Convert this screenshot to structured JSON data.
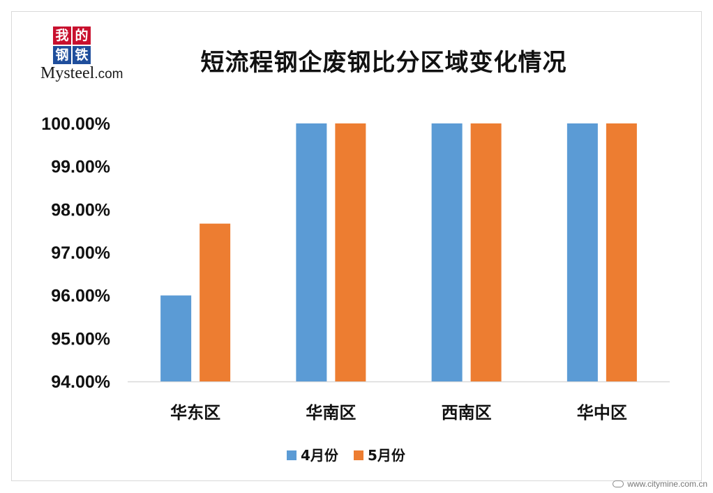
{
  "logo": {
    "chars": [
      "我",
      "的",
      "钢",
      "铁"
    ],
    "text_main": "Mysteel",
    "text_suffix": ".com",
    "colors": {
      "red": "#c8102e",
      "blue": "#1f4e9c"
    }
  },
  "watermark": {
    "url": "www.citymine.com.cn"
  },
  "chart_data": {
    "type": "bar",
    "title": "短流程钢企废钢比分区域变化情况",
    "categories": [
      "华东区",
      "华南区",
      "西南区",
      "华中区"
    ],
    "series": [
      {
        "name": "4月份",
        "color": "#5b9bd5",
        "values": [
          96.0,
          100.0,
          100.0,
          100.0
        ]
      },
      {
        "name": "5月份",
        "color": "#ed7d31",
        "values": [
          97.67,
          100.0,
          100.0,
          100.0
        ]
      }
    ],
    "ylim": [
      94.0,
      100.0
    ],
    "yticks": [
      "94.00%",
      "95.00%",
      "96.00%",
      "97.00%",
      "98.00%",
      "99.00%",
      "100.00%"
    ],
    "ytick_values": [
      94,
      95,
      96,
      97,
      98,
      99,
      100
    ],
    "xlabel": "",
    "ylabel": "",
    "grid": false,
    "legend_position": "bottom"
  }
}
